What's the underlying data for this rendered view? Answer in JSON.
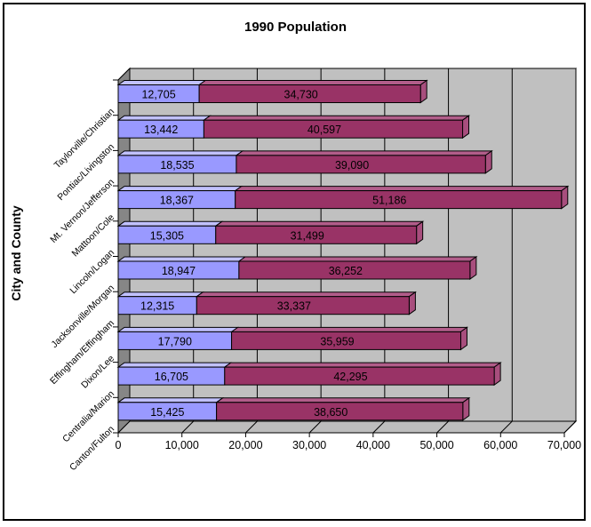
{
  "frame": {
    "background": "#ffffff",
    "border_color": "#000000"
  },
  "chart_data": {
    "type": "bar",
    "orientation": "horizontal",
    "style": "3d-stacked",
    "title": "1990 Population",
    "xlabel": "",
    "ylabel": "City and County",
    "categories": [
      "Taylorville/Christian",
      "Pontiac/Livingston",
      "Mt. Vernon/Jefferson",
      "Mattoon/Cole",
      "Lincoln/Logan",
      "Jacksonville/Morgan",
      "Effingham/Effingham",
      "Dixon/Lee",
      "Centralia/Marion",
      "Canton/Fulton"
    ],
    "series": [
      {
        "name": "City",
        "color": "#9999ff",
        "values": [
          12705,
          13442,
          18535,
          18367,
          15305,
          18947,
          12315,
          17790,
          16705,
          15425
        ],
        "labels": [
          "12,705",
          "13,442",
          "18,535",
          "18,367",
          "15,305",
          "18,947",
          "12,315",
          "17,790",
          "16,705",
          "15,425"
        ]
      },
      {
        "name": "County",
        "color": "#993366",
        "values": [
          34730,
          40597,
          39090,
          51186,
          31499,
          36252,
          33337,
          35959,
          42295,
          38650
        ],
        "labels": [
          "34,730",
          "40,597",
          "39,090",
          "51,186",
          "31,499",
          "36,252",
          "33,337",
          "35,959",
          "42,295",
          "38,650"
        ]
      }
    ],
    "xlim": [
      0,
      70000
    ],
    "xticks": [
      0,
      10000,
      20000,
      30000,
      40000,
      50000,
      60000,
      70000
    ],
    "xtick_labels": [
      "0",
      "10,000",
      "20,000",
      "30,000",
      "40,000",
      "50,000",
      "60,000",
      "70,000"
    ],
    "grid": true,
    "legend_position": "none",
    "colors": {
      "back_wall": "#c0c0c0",
      "ceiling": "#d6d6d6",
      "side_wall": "#868686",
      "floor": "#bdbdbd",
      "gridline": "#000000",
      "text": "#000000",
      "city_top_face": "#c1c1ff",
      "city_side_face": "#7d7dd4",
      "county_top_face": "#b25d8a",
      "county_side_face": "#a84e7d"
    }
  }
}
